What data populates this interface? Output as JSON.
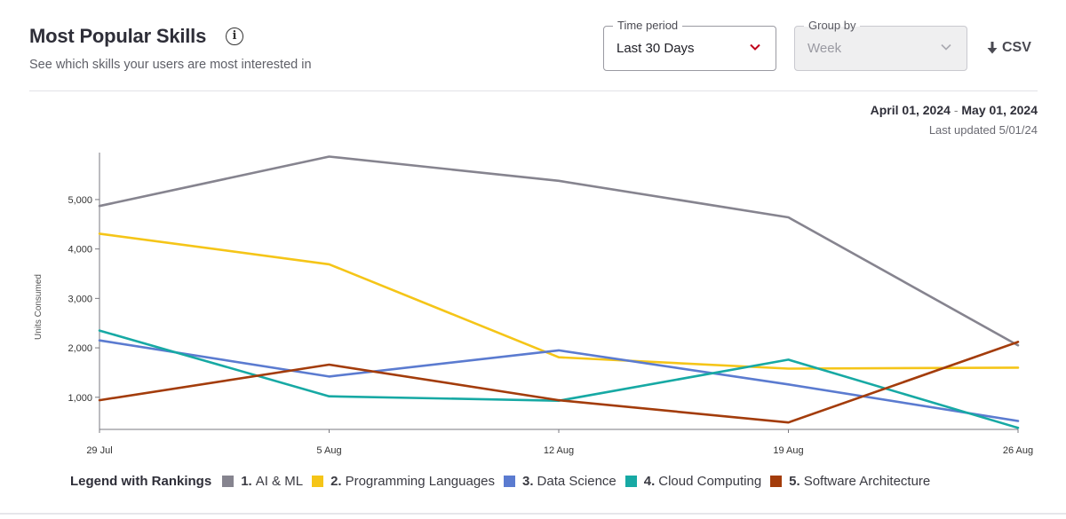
{
  "header": {
    "title": "Most Popular Skills",
    "info_icon": "info-icon",
    "subtitle": "See which skills your users are most interested in"
  },
  "controls": {
    "time_period": {
      "label": "Time period",
      "value": "Last 30 Days"
    },
    "group_by": {
      "label": "Group by",
      "value": "Week",
      "disabled": true
    },
    "csv": {
      "label": "CSV",
      "icon": "download-icon"
    }
  },
  "meta": {
    "date_start": "April 01, 2024",
    "date_sep": "-",
    "date_end": "May 01, 2024",
    "last_updated": "Last updated 5/01/24"
  },
  "chart_data": {
    "type": "line",
    "x": [
      "29 Jul",
      "5 Aug",
      "12 Aug",
      "19 Aug",
      "26 Aug"
    ],
    "ylabel": "Units Consumed",
    "ytick_labels": [
      "1,000",
      "2,000",
      "3,000",
      "4,000",
      "5,000"
    ],
    "ylim": [
      350,
      5950
    ],
    "grid": false,
    "legend_position": "bottom",
    "series": [
      {
        "name": "AI & ML",
        "rank": "1.",
        "color": "#86848f",
        "values": [
          4870,
          5870,
          5380,
          4640,
          2050
        ]
      },
      {
        "name": "Programming Languages",
        "rank": "2.",
        "color": "#f5c518",
        "values": [
          4310,
          3690,
          1810,
          1580,
          1600
        ]
      },
      {
        "name": "Data Science",
        "rank": "3.",
        "color": "#5b7bd0",
        "values": [
          2150,
          1420,
          1950,
          1260,
          520
        ]
      },
      {
        "name": "Cloud Computing",
        "rank": "4.",
        "color": "#17a9a4",
        "values": [
          2350,
          1020,
          930,
          1760,
          380
        ]
      },
      {
        "name": "Software Architecture",
        "rank": "5.",
        "color": "#a33c0b",
        "values": [
          940,
          1660,
          940,
          490,
          2120
        ]
      }
    ]
  },
  "legend": {
    "title": "Legend with Rankings"
  }
}
